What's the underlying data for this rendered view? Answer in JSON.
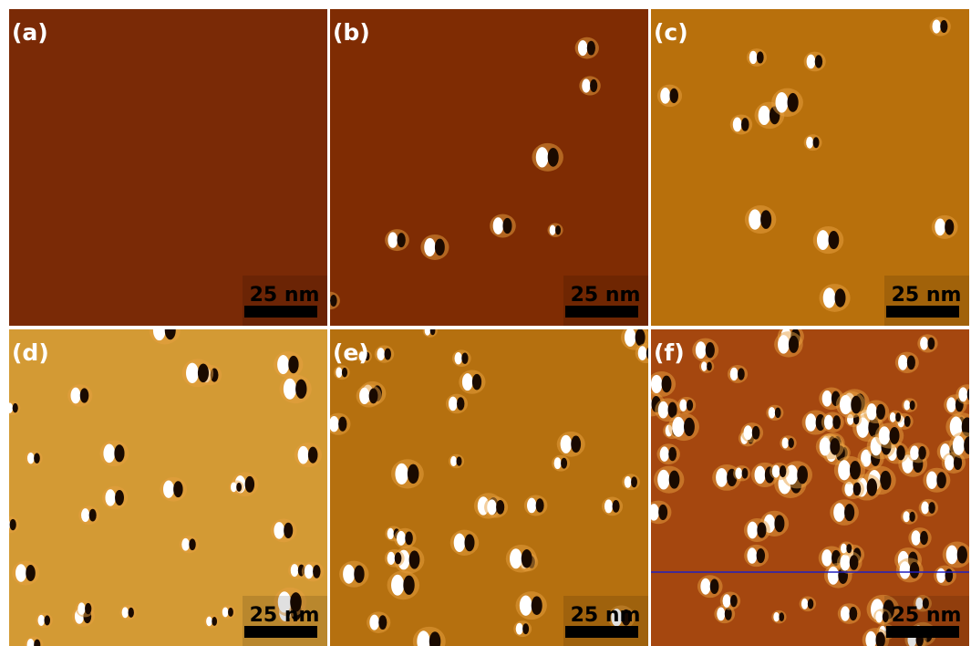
{
  "panels": [
    {
      "label": "(a)",
      "scale_bar": "25 nm"
    },
    {
      "label": "(b)",
      "scale_bar": "25 nm"
    },
    {
      "label": "(c)",
      "scale_bar": "25 nm"
    },
    {
      "label": "(d)",
      "scale_bar": "25 nm"
    },
    {
      "label": "(e)",
      "scale_bar": "25 nm"
    },
    {
      "label": "(f)",
      "scale_bar": "25 nm"
    }
  ]
}
